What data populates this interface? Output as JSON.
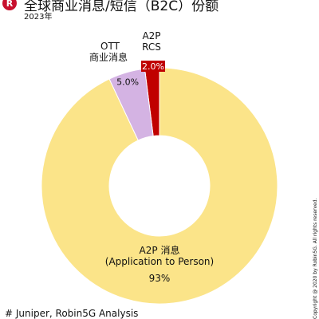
{
  "header": {
    "logo_letter": "R",
    "title": "全球商业消息/短信（B2C）份额",
    "subtitle": "2023年"
  },
  "footer": {
    "source": "# Juniper, Robin5G Analysis",
    "copyright": "Copyright @ 2020 by Robin5G. All rights reserved."
  },
  "chart_data": {
    "type": "pie",
    "donut": true,
    "title": "全球商业消息/短信（B2C）份额",
    "subtitle": "2023年",
    "slices": [
      {
        "name": "A2P 消息",
        "name_line2": "(Application to Person)",
        "label": "93%",
        "value": 93,
        "color": "#fbe489"
      },
      {
        "name": "OTT",
        "name_line2": "商业消息",
        "label": "5.0%",
        "value": 5.0,
        "color": "#d4b3e3"
      },
      {
        "name": "A2P",
        "name_line2": "RCS",
        "label": "2.0%",
        "value": 2.0,
        "color": "#c00000"
      }
    ]
  }
}
